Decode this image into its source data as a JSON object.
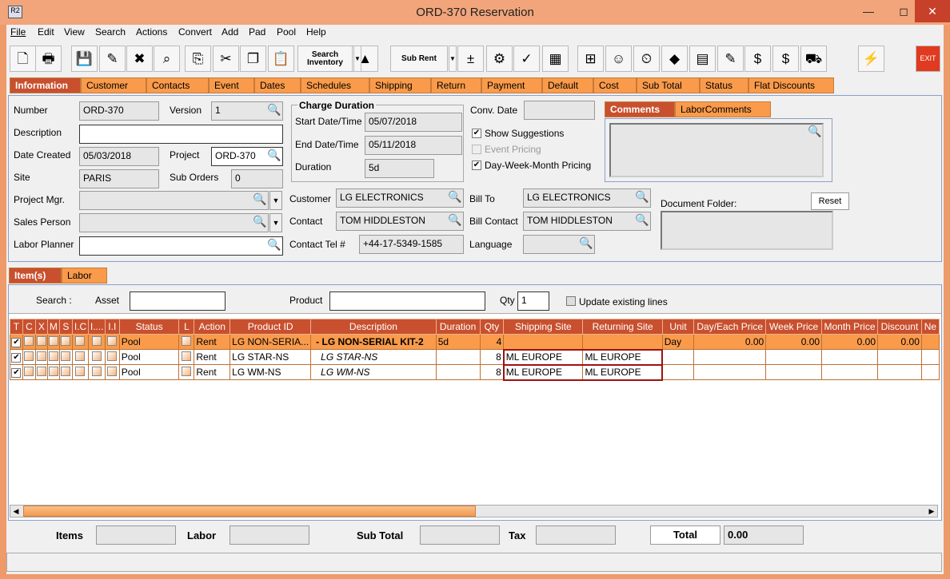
{
  "window": {
    "title": "ORD-370 Reservation",
    "app_icon": "R2"
  },
  "menu": [
    "File",
    "Edit",
    "View",
    "Search",
    "Actions",
    "Convert",
    "Add",
    "Pad",
    "Pool",
    "Help"
  ],
  "toolbar": {
    "search_inventory": "Search Inventory",
    "sub_rent": "Sub Rent",
    "exit": "EXIT"
  },
  "tabs": [
    "Information",
    "Customer",
    "Contacts",
    "Event",
    "Dates",
    "Schedules",
    "Shipping",
    "Return",
    "Payment",
    "Default",
    "Cost",
    "Sub Total",
    "Status",
    "Flat Discounts"
  ],
  "info": {
    "number_label": "Number",
    "number": "ORD-370",
    "version_label": "Version",
    "version": "1",
    "description_label": "Description",
    "description": "",
    "date_created_label": "Date Created",
    "date_created": "05/03/2018",
    "project_label": "Project",
    "project": "ORD-370",
    "site_label": "Site",
    "site": "PARIS",
    "sub_orders_label": "Sub Orders",
    "sub_orders": "0",
    "project_mgr_label": "Project Mgr.",
    "sales_person_label": "Sales Person",
    "labor_planner_label": "Labor Planner",
    "charge_duration_title": "Charge Duration",
    "start_label": "Start Date/Time",
    "start": "05/07/2018",
    "end_label": "End Date/Time",
    "end": "05/11/2018",
    "duration_label": "Duration",
    "duration": "5d",
    "customer_label": "Customer",
    "customer": "LG ELECTRONICS",
    "contact_label": "Contact",
    "contact": "TOM HIDDLESTON",
    "contact_tel_label": "Contact Tel #",
    "contact_tel": "+44-17-5349-1585",
    "conv_date_label": "Conv. Date",
    "show_suggestions": "Show Suggestions",
    "event_pricing": "Event Pricing",
    "dwm_pricing": "Day-Week-Month Pricing",
    "bill_to_label": "Bill To",
    "bill_to": "LG ELECTRONICS",
    "bill_contact_label": "Bill Contact",
    "bill_contact": "TOM HIDDLESTON",
    "language_label": "Language",
    "comments_tabs": [
      "Comments",
      "LaborComments"
    ],
    "document_folder_label": "Document Folder:",
    "reset": "Reset"
  },
  "items_tabs": [
    "Item(s)",
    "Labor"
  ],
  "search": {
    "label": "Search :",
    "asset_label": "Asset",
    "product_label": "Product",
    "qty_label": "Qty",
    "qty": "1",
    "update_existing": "Update existing lines"
  },
  "grid": {
    "columns": [
      "T",
      "C",
      "X",
      "M",
      "S",
      "I.C",
      "I....",
      "I.I",
      "Status",
      "L",
      "Action",
      "Product ID",
      "Description",
      "Duration",
      "Qty",
      "Shipping Site",
      "Returning Site",
      "Unit",
      "Day/Each Price",
      "Week Price",
      "Month Price",
      "Discount",
      "Ne"
    ],
    "rows": [
      {
        "status": "Pool",
        "action": "Rent",
        "product_id": "LG NON-SERIA...",
        "description": "-  LG NON-SERIAL KIT-2",
        "duration": "5d",
        "qty": "4",
        "shipping": "",
        "returning": "",
        "unit": "Day",
        "day_price": "0.00",
        "week_price": "0.00",
        "month_price": "0.00",
        "discount": "0.00",
        "selected": true
      },
      {
        "status": "Pool",
        "action": "Rent",
        "product_id": "LG STAR-NS",
        "description": "LG STAR-NS",
        "duration": "",
        "qty": "8",
        "shipping": "ML EUROPE",
        "returning": "ML EUROPE",
        "unit": "",
        "day_price": "",
        "week_price": "",
        "month_price": "",
        "discount": "",
        "selected": false
      },
      {
        "status": "Pool",
        "action": "Rent",
        "product_id": "LG WM-NS",
        "description": "LG WM-NS",
        "duration": "",
        "qty": "8",
        "shipping": "ML EUROPE",
        "returning": "ML EUROPE",
        "unit": "",
        "day_price": "",
        "week_price": "",
        "month_price": "",
        "discount": "",
        "selected": false
      }
    ]
  },
  "footer": {
    "items_label": "Items",
    "labor_label": "Labor",
    "subtotal_label": "Sub Total",
    "tax_label": "Tax",
    "total_label": "Total",
    "total": "0.00"
  },
  "colors": {
    "accent": "#C8502E",
    "tab": "#F99B4B",
    "frame": "#EE9A6A"
  }
}
